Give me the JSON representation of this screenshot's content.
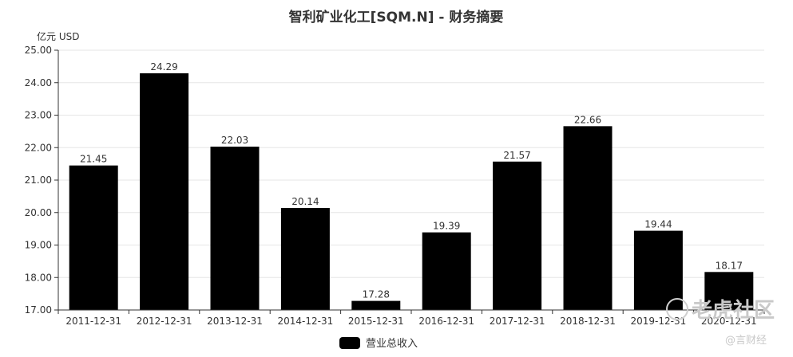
{
  "chart_data": {
    "type": "bar",
    "title": "智利矿业化工[SQM.N] - 财务摘要",
    "unit_label": "亿元  USD",
    "categories": [
      "2011-12-31",
      "2012-12-31",
      "2013-12-31",
      "2014-12-31",
      "2015-12-31",
      "2016-12-31",
      "2017-12-31",
      "2018-12-31",
      "2019-12-31",
      "2020-12-31"
    ],
    "series": [
      {
        "name": "营业总收入",
        "values": [
          21.45,
          24.29,
          22.03,
          20.14,
          17.28,
          19.39,
          21.57,
          22.66,
          19.44,
          18.17
        ]
      }
    ],
    "ylim": [
      17.0,
      25.0
    ],
    "yticks": [
      "17.00",
      "18.00",
      "19.00",
      "20.00",
      "21.00",
      "22.00",
      "23.00",
      "24.00",
      "25.00"
    ],
    "grid": true,
    "legend_position": "bottom-center",
    "colors": {
      "bar": "#000000",
      "grid": "#e6e6e6",
      "axis": "#333333"
    }
  },
  "watermark": {
    "main": "老虎社区",
    "sub": "@言财经"
  }
}
